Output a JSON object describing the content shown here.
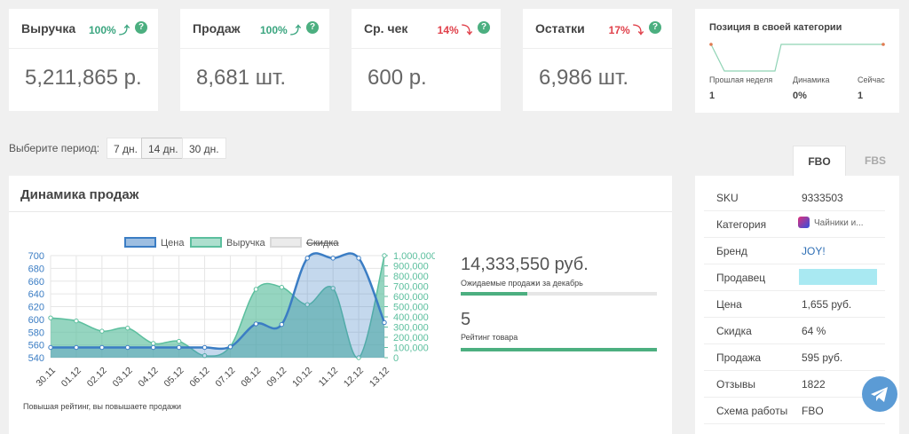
{
  "stats": [
    {
      "title": "Выручка",
      "change": "100% ⤴",
      "color": "#3aa57f",
      "value": "5,211,865 р."
    },
    {
      "title": "Продаж",
      "change": "100% ⤴",
      "color": "#3aa57f",
      "value": "8,681 шт."
    },
    {
      "title": "Ср. чек",
      "change": "14% ⤵",
      "color": "#e0404a",
      "value": "600 р."
    },
    {
      "title": "Остатки",
      "change": "17% ⤵",
      "color": "#e0404a",
      "value": "6,986 шт."
    }
  ],
  "position": {
    "title": "Позиция в своей категории",
    "items": [
      {
        "label": "Прошлая неделя",
        "value": "1"
      },
      {
        "label": "Динамика",
        "value": "0%"
      },
      {
        "label": "Сейчас",
        "value": "1"
      }
    ]
  },
  "period": {
    "label": "Выберите период:",
    "options": [
      "7 дн.",
      "14 дн.",
      "30 дн."
    ],
    "selected": 1
  },
  "tabs": {
    "items": [
      "FBO",
      "FBS"
    ],
    "active": 0
  },
  "details": [
    {
      "label": "SKU",
      "value": "9333503"
    },
    {
      "label": "Категория",
      "value": "Чайники и..."
    },
    {
      "label": "Бренд",
      "value": "JOY!"
    },
    {
      "label": "Продавец"
    },
    {
      "label": "Цена",
      "value": "1,655 руб."
    },
    {
      "label": "Скидка",
      "value": "64 %"
    },
    {
      "label": "Продажа",
      "value": "595 руб."
    },
    {
      "label": "Отзывы",
      "value": "1822"
    },
    {
      "label": "Схема работы",
      "value": "FBO"
    }
  ],
  "forecast": {
    "amount": "14,333,550 руб.",
    "amount_label": "Ожидаемые продажи за декабрь",
    "rating": "5",
    "rating_label": "Рейтинг товара"
  },
  "note": "Повышая рейтинг, вы повышаете продажи",
  "chart_data": {
    "type": "line",
    "title": "Динамика продаж",
    "categories": [
      "30.11",
      "01.12",
      "02.12",
      "03.12",
      "04.12",
      "05.12",
      "06.12",
      "07.12",
      "08.12",
      "09.12",
      "10.12",
      "11.12",
      "12.12",
      "13.12"
    ],
    "series": [
      {
        "name": "Выручка",
        "color": "#5cbf9e",
        "axis": "y2",
        "values": [
          390000,
          360000,
          260000,
          290000,
          140000,
          160000,
          20000,
          110000,
          670000,
          690000,
          520000,
          680000,
          0,
          1000000
        ]
      },
      {
        "name": "Цена",
        "color": "#3b7dc4",
        "values": [
          556,
          556,
          556,
          556,
          556,
          556,
          556,
          557,
          593,
          592,
          696,
          696,
          696,
          595
        ]
      },
      {
        "name": "Скидка",
        "color": "#d8d8d8",
        "hidden": true
      }
    ],
    "ylim": [
      540,
      700
    ],
    "yticks": [
      540,
      560,
      580,
      600,
      620,
      640,
      660,
      680,
      700
    ],
    "y2lim": [
      0,
      1000000
    ],
    "y2ticks": [
      0,
      {
        "value": 100000,
        "label": "100,000"
      },
      {
        "value": 200000,
        "label": "200,000"
      },
      {
        "value": 300000,
        "label": "300,000"
      },
      {
        "value": 400000,
        "label": "400,000"
      },
      {
        "value": 500000,
        "label": "500,000"
      },
      {
        "value": 600000,
        "label": "600,000"
      },
      {
        "value": 700000,
        "label": "700,000"
      },
      {
        "value": 800000,
        "label": "800,000"
      },
      {
        "value": 900000,
        "label": "900,000"
      },
      {
        "value": 1000000,
        "label": "1,000,000"
      }
    ],
    "grid": true
  }
}
